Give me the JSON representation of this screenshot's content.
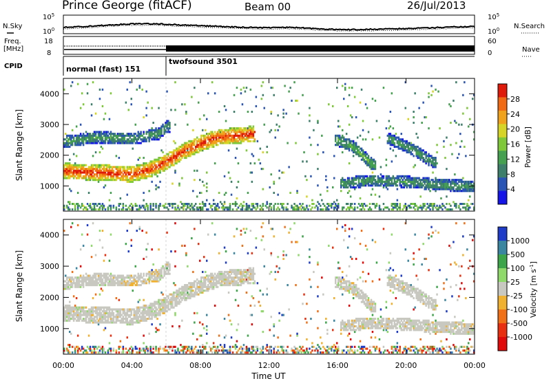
{
  "header": {
    "station": "Prince George (fitACF)",
    "beam": "Beam 00",
    "date": "26/Jul/2013"
  },
  "top_panels": {
    "nsky": {
      "label": "N.Sky",
      "ticks": [
        "10^5",
        "10^0"
      ],
      "right_label": "N.Search",
      "right_ticks": [
        "10^5",
        "10^0"
      ]
    },
    "freq": {
      "label_line1": "Freq.",
      "label_line2": "[MHz]",
      "ticks": [
        "18",
        "8"
      ],
      "right_label": "Nave",
      "right_ticks": [
        "60",
        "0"
      ]
    },
    "cpid": {
      "label": "CPID",
      "segments": [
        {
          "name": "normal (fast) 151",
          "start_hour": 0,
          "end_hour": 6.05
        },
        {
          "name": "twofsound 3501",
          "start_hour": 6.05,
          "end_hour": 24
        }
      ]
    }
  },
  "chart_data": [
    {
      "type": "heatmap",
      "title": "",
      "ylabel": "Slant Range [km]",
      "xlabel": "Time UT",
      "xlim": [
        0,
        24
      ],
      "ylim": [
        180,
        4500
      ],
      "yticks": [
        1000,
        2000,
        3000,
        4000
      ],
      "xtick_labels": [
        "00:00",
        "04:00",
        "08:00",
        "12:00",
        "16:00",
        "20:00",
        "00:00"
      ],
      "colorbar": {
        "label": "Power [dB]",
        "ticks": [
          "4",
          "8",
          "12",
          "16",
          "20",
          "24",
          "28"
        ],
        "colors": [
          "#1515e8",
          "#2b55b5",
          "#3d7f6a",
          "#45a050",
          "#7ec83a",
          "#d6d426",
          "#f0a21c",
          "#f06a16",
          "#e01a0a"
        ]
      },
      "features": [
        {
          "name": "main-band",
          "points": [
            [
              0,
              1450
            ],
            [
              2,
              1400
            ],
            [
              4,
              1350
            ],
            [
              5,
              1500
            ],
            [
              6,
              1750
            ],
            [
              7,
              2100
            ],
            [
              8,
              2350
            ],
            [
              9,
              2550
            ],
            [
              11,
              2650
            ]
          ],
          "power": 24
        },
        {
          "name": "upper-band",
          "points": [
            [
              0,
              2400
            ],
            [
              2,
              2550
            ],
            [
              4,
              2500
            ],
            [
              5.5,
              2650
            ],
            [
              6,
              2900
            ]
          ],
          "power": 12
        },
        {
          "name": "late-band",
          "points": [
            [
              16.3,
              1050
            ],
            [
              18,
              1150
            ],
            [
              20,
              1100
            ],
            [
              22,
              1000
            ],
            [
              24,
              950
            ]
          ],
          "power": 12
        },
        {
          "name": "late-arc-1",
          "points": [
            [
              16,
              2450
            ],
            [
              17,
              2200
            ],
            [
              18,
              1650
            ]
          ],
          "power": 14
        },
        {
          "name": "late-arc-2",
          "points": [
            [
              19,
              2500
            ],
            [
              20.5,
              2100
            ],
            [
              21.5,
              1750
            ]
          ],
          "power": 12
        }
      ]
    },
    {
      "type": "heatmap",
      "title": "",
      "ylabel": "Slant Range [km]",
      "xlabel": "Time UT",
      "xlim": [
        0,
        24
      ],
      "ylim": [
        180,
        4500
      ],
      "yticks": [
        1000,
        2000,
        3000,
        4000
      ],
      "xtick_labels": [
        "00:00",
        "04:00",
        "08:00",
        "12:00",
        "16:00",
        "20:00",
        "00:00"
      ],
      "colorbar": {
        "label": "Velocity [m s^-1]",
        "ticks": [
          "1000",
          "500",
          "100",
          "25",
          "-25",
          "-100",
          "-500",
          "-1000"
        ],
        "colors": [
          "#1f3cc8",
          "#3a86a0",
          "#3ca54a",
          "#8fd86a",
          "#c8c8c0",
          "#f0b030",
          "#f07018",
          "#e83010",
          "#e00a0a"
        ]
      },
      "features": [
        {
          "name": "ground-scatter",
          "velocity": 0
        },
        {
          "name": "orange-patch",
          "time_range": [
            3.5,
            5.5
          ],
          "range_km": [
            1900,
            2500
          ],
          "velocity": -100
        }
      ]
    }
  ]
}
